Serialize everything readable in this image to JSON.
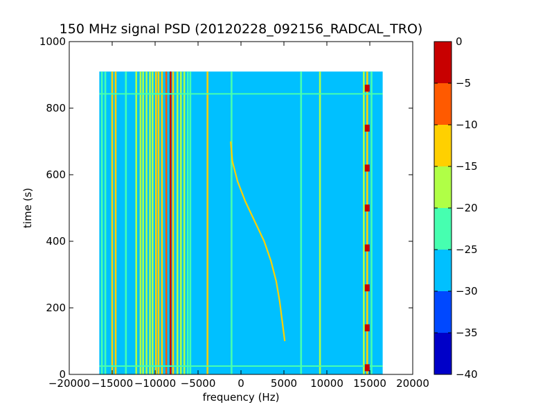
{
  "chart_data": {
    "type": "heatmap",
    "title": "150 MHz signal PSD (20120228_092156_RADCAL_TRO)",
    "xlabel": "frequency (Hz)",
    "ylabel": "time (s)",
    "xlim": [
      -20000,
      20000
    ],
    "ylim": [
      0,
      1000
    ],
    "x_ticks": [
      -20000,
      -15000,
      -10000,
      -5000,
      0,
      5000,
      10000,
      15000,
      20000
    ],
    "x_tick_labels": [
      "−20000",
      "−15000",
      "−10000",
      "−5000",
      "0",
      "5000",
      "10000",
      "15000",
      "20000"
    ],
    "y_ticks": [
      0,
      200,
      400,
      600,
      800,
      1000
    ],
    "y_tick_labels": [
      "0",
      "200",
      "400",
      "600",
      "800",
      "1000"
    ],
    "data_extent": {
      "x": [
        -16500,
        16500
      ],
      "y": [
        0,
        910
      ]
    },
    "background_level": -28,
    "colorbar": {
      "range": [
        -40,
        0
      ],
      "ticks": [
        0,
        -5,
        -10,
        -15,
        -20,
        -25,
        -30,
        -35,
        -40
      ],
      "tick_labels": [
        "0",
        "−5",
        "−10",
        "−15",
        "−20",
        "−25",
        "−30",
        "−35",
        "−40"
      ],
      "levels": [
        {
          "from": -40,
          "to": -35,
          "color": "#0000c8"
        },
        {
          "from": -35,
          "to": -30,
          "color": "#0048ff"
        },
        {
          "from": -30,
          "to": -25,
          "color": "#00c0ff"
        },
        {
          "from": -25,
          "to": -20,
          "color": "#46ffb0"
        },
        {
          "from": -20,
          "to": -15,
          "color": "#b0ff46"
        },
        {
          "from": -15,
          "to": -10,
          "color": "#ffd000"
        },
        {
          "from": -10,
          "to": -5,
          "color": "#ff5a00"
        },
        {
          "from": -5,
          "to": 0,
          "color": "#c80000"
        }
      ]
    },
    "vertical_lines": [
      {
        "freq": -16200,
        "level": -22
      },
      {
        "freq": -15800,
        "level": -22
      },
      {
        "freq": -15000,
        "level": -12
      },
      {
        "freq": -14600,
        "level": -12
      },
      {
        "freq": -13400,
        "level": -22
      },
      {
        "freq": -12200,
        "level": -18
      },
      {
        "freq": -11700,
        "level": -18
      },
      {
        "freq": -11400,
        "level": -16
      },
      {
        "freq": -11000,
        "level": -18
      },
      {
        "freq": -10600,
        "level": -17
      },
      {
        "freq": -10300,
        "level": -17
      },
      {
        "freq": -9900,
        "level": -15
      },
      {
        "freq": -9600,
        "level": -14
      },
      {
        "freq": -9200,
        "level": -15
      },
      {
        "freq": -8700,
        "level": -7
      },
      {
        "freq": -8200,
        "level": -3
      },
      {
        "freq": -7900,
        "level": -12
      },
      {
        "freq": -7400,
        "level": -16
      },
      {
        "freq": -7000,
        "level": -18
      },
      {
        "freq": -6600,
        "level": -20
      },
      {
        "freq": -6200,
        "level": -22
      },
      {
        "freq": -5900,
        "level": -22
      },
      {
        "freq": -3900,
        "level": -14
      },
      {
        "freq": -1100,
        "level": -23
      },
      {
        "freq": 7000,
        "level": -23
      },
      {
        "freq": 9200,
        "level": -16
      },
      {
        "freq": 14300,
        "level": -20
      },
      {
        "freq": 14700,
        "level": -14
      },
      {
        "freq": 15200,
        "level": -22
      }
    ],
    "drifting_signal": {
      "level": -15,
      "points": [
        {
          "freq": -1200,
          "time": 700
        },
        {
          "freq": -1000,
          "time": 640
        },
        {
          "freq": -400,
          "time": 580
        },
        {
          "freq": 500,
          "time": 520
        },
        {
          "freq": 1600,
          "time": 460
        },
        {
          "freq": 2700,
          "time": 400
        },
        {
          "freq": 3500,
          "time": 340
        },
        {
          "freq": 4100,
          "time": 280
        },
        {
          "freq": 4500,
          "time": 220
        },
        {
          "freq": 4800,
          "time": 160
        },
        {
          "freq": 5100,
          "time": 100
        }
      ]
    },
    "horizontal_bands": [
      {
        "time": 843,
        "level": -22
      },
      {
        "time": 25,
        "level": -22
      }
    ],
    "periodic_bursts": [
      {
        "freq": 14700,
        "times": [
          20,
          140,
          260,
          380,
          500,
          620,
          740,
          860
        ],
        "level": -3
      }
    ]
  }
}
